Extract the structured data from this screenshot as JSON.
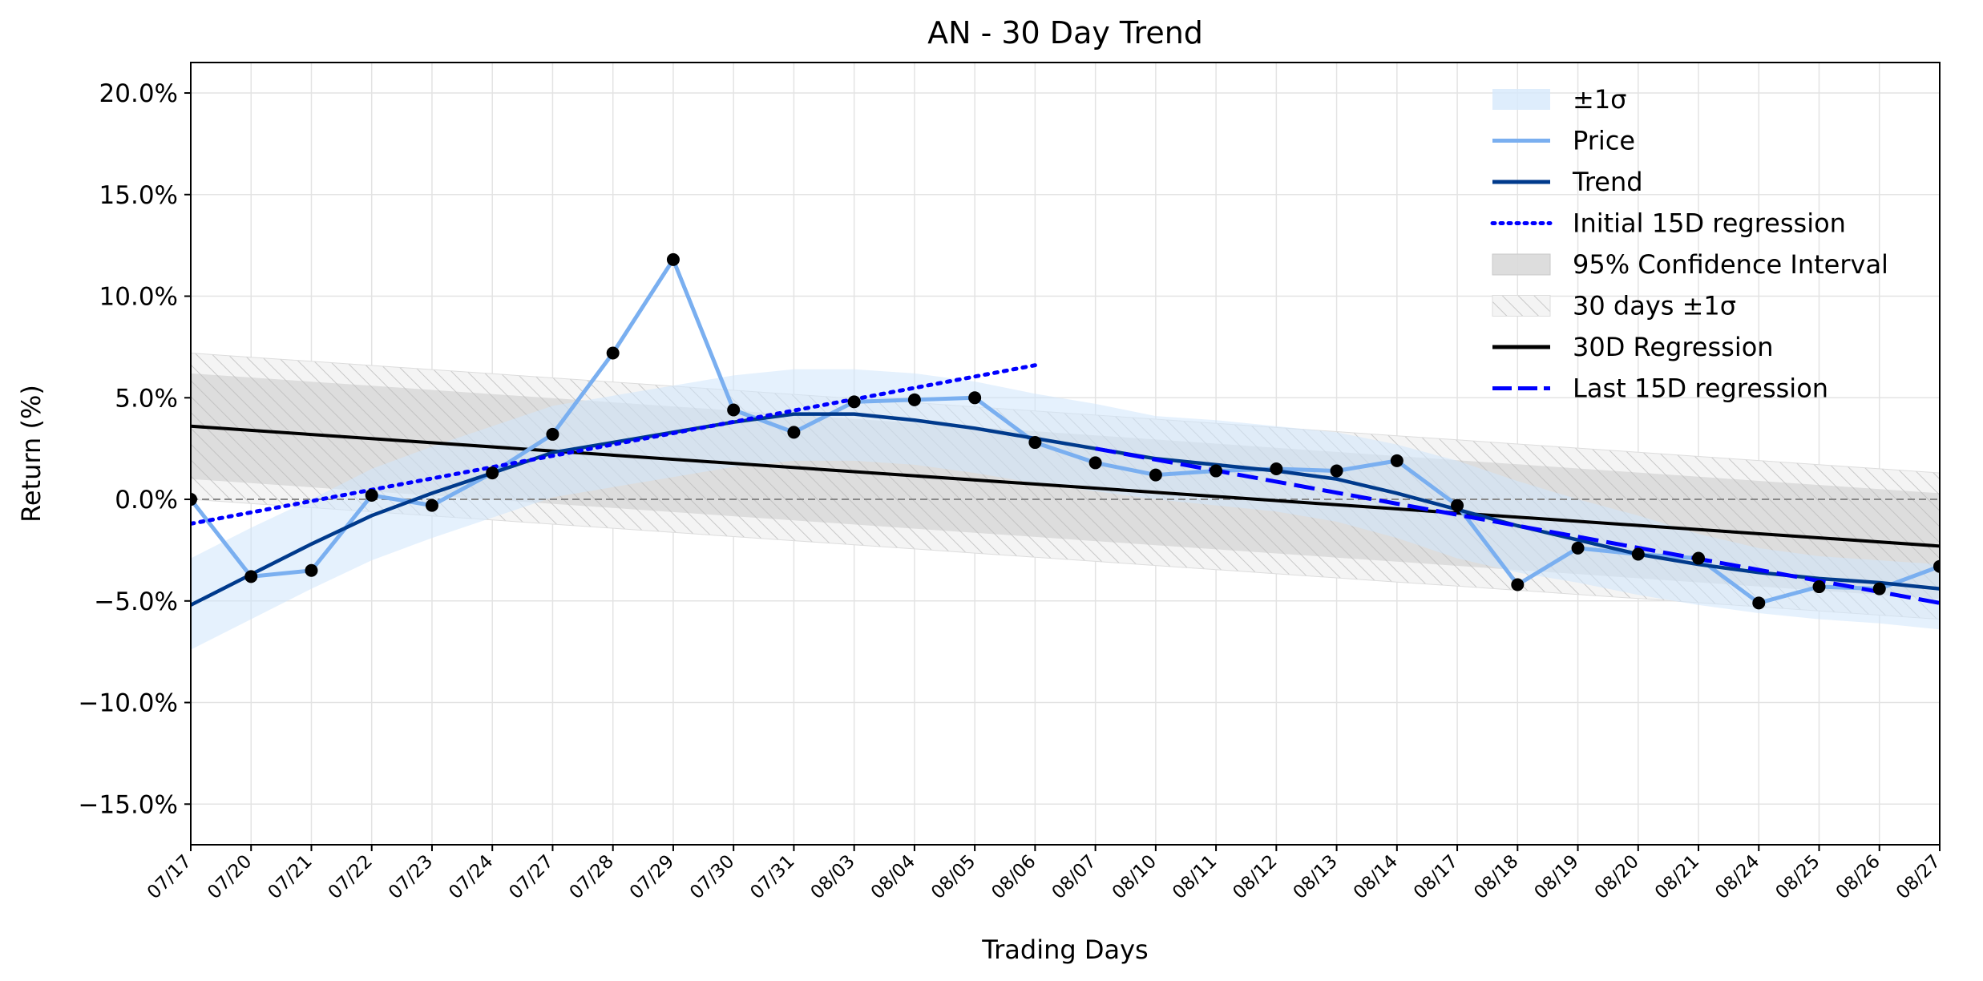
{
  "chart_data": {
    "type": "line",
    "title": "AN - 30 Day Trend",
    "xlabel": "Trading Days",
    "ylabel": "Return (%)",
    "ylim": [
      -17,
      21.5
    ],
    "y_ticks": [
      -15,
      -10,
      -5,
      0,
      5,
      10,
      15,
      20
    ],
    "y_tick_labels": [
      "−15.0%",
      "−10.0%",
      "−5.0%",
      "0.0%",
      "5.0%",
      "10.0%",
      "15.0%",
      "20.0%"
    ],
    "grid": true,
    "legend_position": "top-right",
    "categories": [
      "07/17",
      "07/20",
      "07/21",
      "07/22",
      "07/23",
      "07/24",
      "07/27",
      "07/28",
      "07/29",
      "07/30",
      "07/31",
      "08/03",
      "08/04",
      "08/05",
      "08/06",
      "08/07",
      "08/10",
      "08/11",
      "08/12",
      "08/13",
      "08/14",
      "08/17",
      "08/18",
      "08/19",
      "08/20",
      "08/21",
      "08/24",
      "08/25",
      "08/26",
      "08/27"
    ],
    "legend": [
      {
        "label": "±1σ",
        "style": "band",
        "color": "#d6e9fb"
      },
      {
        "label": "Price",
        "style": "line",
        "color": "#7aaff0"
      },
      {
        "label": "Trend",
        "style": "line",
        "color": "#003a8c"
      },
      {
        "label": "Initial 15D regression",
        "style": "dotted",
        "color": "#0000ff"
      },
      {
        "label": "95% Confidence Interval",
        "style": "band",
        "color": "#d9d9d9"
      },
      {
        "label": "30 days ±1σ",
        "style": "hatch",
        "color": "#eeeeee"
      },
      {
        "label": "30D Regression",
        "style": "line",
        "color": "#000000"
      },
      {
        "label": "Last 15D regression",
        "style": "dashed",
        "color": "#0000ff"
      }
    ],
    "series": [
      {
        "name": "Price",
        "color": "#7aaff0",
        "values": [
          0.0,
          -3.8,
          -3.5,
          0.2,
          -0.3,
          1.3,
          3.2,
          7.2,
          11.8,
          4.4,
          3.3,
          4.8,
          4.9,
          5.0,
          2.8,
          1.8,
          1.2,
          1.4,
          1.5,
          1.4,
          1.9,
          -0.3,
          -4.2,
          -2.4,
          -2.7,
          -2.9,
          -5.1,
          -4.3,
          -4.4,
          -3.3
        ]
      },
      {
        "name": "Trend",
        "color": "#003a8c",
        "values": [
          -5.2,
          -3.7,
          -2.2,
          -0.8,
          0.3,
          1.3,
          2.3,
          2.8,
          3.3,
          3.8,
          4.2,
          4.2,
          3.9,
          3.5,
          3.0,
          2.5,
          2.0,
          1.7,
          1.4,
          1.0,
          0.3,
          -0.5,
          -1.3,
          -2.0,
          -2.7,
          -3.2,
          -3.6,
          -3.9,
          -4.1,
          -4.4
        ]
      },
      {
        "name": "±1σ upper",
        "values": [
          -2.9,
          -1.4,
          0.0,
          1.5,
          2.6,
          3.6,
          4.6,
          5.1,
          5.6,
          6.1,
          6.4,
          6.4,
          6.2,
          5.8,
          5.2,
          4.7,
          4.1,
          3.9,
          3.6,
          3.3,
          2.7,
          1.9,
          0.9,
          0.0,
          -0.8,
          -1.7,
          -2.4,
          -2.8,
          -3.0,
          -3.2
        ]
      },
      {
        "name": "±1σ lower",
        "values": [
          -7.4,
          -5.9,
          -4.4,
          -3.0,
          -1.9,
          -0.9,
          0.1,
          0.6,
          1.1,
          1.6,
          1.9,
          1.9,
          1.7,
          1.3,
          0.8,
          0.4,
          0.0,
          -0.3,
          -0.6,
          -1.1,
          -1.9,
          -2.9,
          -3.6,
          -4.1,
          -4.7,
          -5.2,
          -5.6,
          -5.9,
          -6.1,
          -6.4
        ]
      }
    ],
    "regression_30d": {
      "start": 3.6,
      "end": -2.3,
      "ci_half_width": 2.6,
      "sigma_half_width": 3.6
    },
    "initial_15d_regression": {
      "start_index": 0,
      "end_index": 14,
      "start": -1.2,
      "end": 6.6
    },
    "last_15d_regression": {
      "start_index": 15,
      "end_index": 29,
      "start": 2.5,
      "end": -5.1
    },
    "zero_line": 0.0
  }
}
